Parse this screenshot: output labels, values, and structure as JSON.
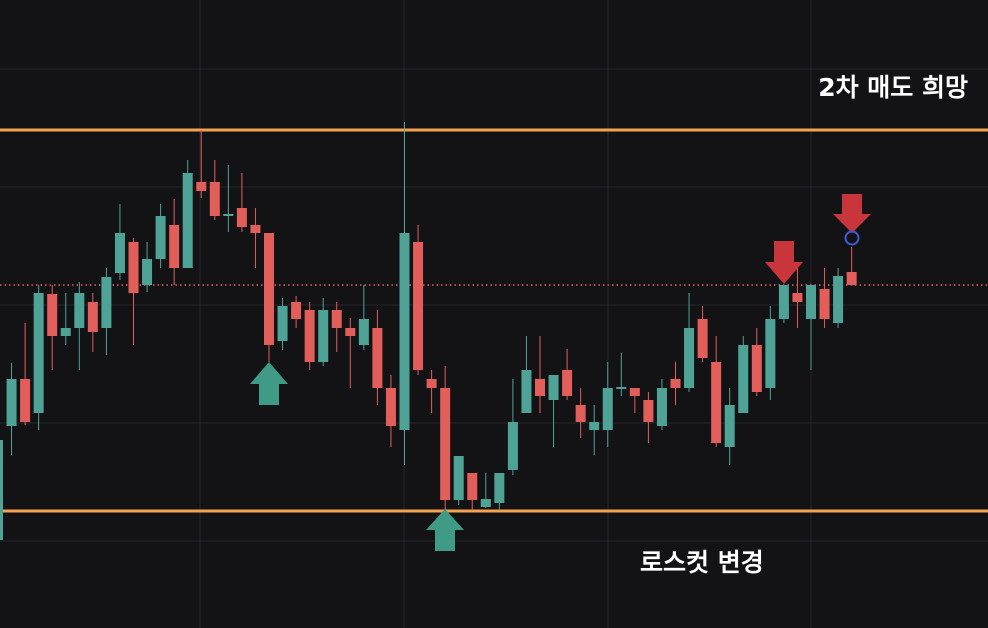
{
  "chart_data": {
    "type": "candlestick",
    "categories": [
      null,
      null,
      null,
      null,
      null,
      null,
      null,
      null,
      null,
      null,
      null,
      null,
      null,
      null,
      null,
      null,
      null,
      null,
      null,
      null,
      null,
      null,
      null,
      null,
      null,
      null,
      null,
      null,
      null,
      null,
      null,
      null,
      null,
      null,
      null,
      null,
      null,
      null,
      null,
      null,
      null,
      null,
      null,
      null,
      null,
      null,
      null,
      null,
      null,
      null,
      null,
      null,
      null,
      null,
      null,
      null,
      null,
      null,
      null,
      null,
      null,
      null,
      null,
      null
    ],
    "open": [
      88,
      202,
      249,
      215,
      334,
      292,
      300,
      326,
      300,
      355,
      386,
      343,
      369,
      403,
      360,
      446,
      446,
      412,
      420,
      403,
      395,
      287,
      326,
      318,
      266,
      318,
      300,
      283,
      300,
      240,
      198,
      386,
      249,
      240,
      128,
      155,
      121,
      125,
      158,
      215,
      249,
      228,
      258,
      223,
      198,
      198,
      239,
      240,
      228,
      202,
      249,
      240,
      309,
      266,
      181,
      215,
      283,
      240,
      309,
      335,
      309,
      339,
      305,
      356
    ],
    "high": [
      198,
      265,
      305,
      343,
      343,
      335,
      346,
      335,
      360,
      424,
      390,
      386,
      424,
      429,
      468,
      498,
      468,
      463,
      455,
      420,
      395,
      330,
      332,
      326,
      330,
      326,
      310,
      343,
      318,
      253,
      506,
      403,
      258,
      262,
      172,
      155,
      155,
      155,
      249,
      292,
      292,
      253,
      279,
      240,
      223,
      266,
      275,
      240,
      236,
      249,
      266,
      335,
      322,
      292,
      240,
      292,
      300,
      322,
      343,
      360,
      343,
      360,
      360,
      381
    ],
    "low": [
      85,
      173,
      203,
      198,
      258,
      283,
      258,
      276,
      273,
      348,
      283,
      336,
      360,
      343,
      360,
      430,
      408,
      396,
      396,
      360,
      266,
      278,
      300,
      258,
      262,
      276,
      240,
      278,
      223,
      181,
      163,
      253,
      215,
      118,
      123,
      118,
      120,
      118,
      153,
      215,
      215,
      181,
      228,
      190,
      173,
      181,
      232,
      215,
      185,
      198,
      223,
      236,
      266,
      181,
      163,
      215,
      232,
      228,
      305,
      300,
      258,
      300,
      300,
      343
    ],
    "close": [
      188,
      249,
      206,
      335,
      292,
      300,
      335,
      296,
      351,
      395,
      335,
      369,
      412,
      360,
      455,
      437,
      412,
      414,
      401,
      395,
      283,
      322,
      309,
      266,
      318,
      300,
      292,
      309,
      240,
      202,
      395,
      258,
      240,
      128,
      172,
      128,
      129,
      155,
      206,
      258,
      232,
      253,
      232,
      206,
      206,
      240,
      241,
      232,
      206,
      240,
      240,
      300,
      270,
      185,
      223,
      283,
      236,
      309,
      343,
      326,
      343,
      309,
      352,
      343
    ],
    "up_color": "#4fa396",
    "down_color": "#e25e5b",
    "ylim": [
      0,
      628
    ],
    "levels": [
      {
        "value": 498,
        "color": "#f4a24e",
        "style": "solid"
      },
      {
        "value": 117,
        "color": "#f4a24e",
        "style": "solid"
      },
      {
        "value": 343,
        "color": "#e25e5b",
        "style": "dotted"
      }
    ],
    "annotations": [
      "2차 매도 희망",
      "로스컷 변경"
    ]
  }
}
